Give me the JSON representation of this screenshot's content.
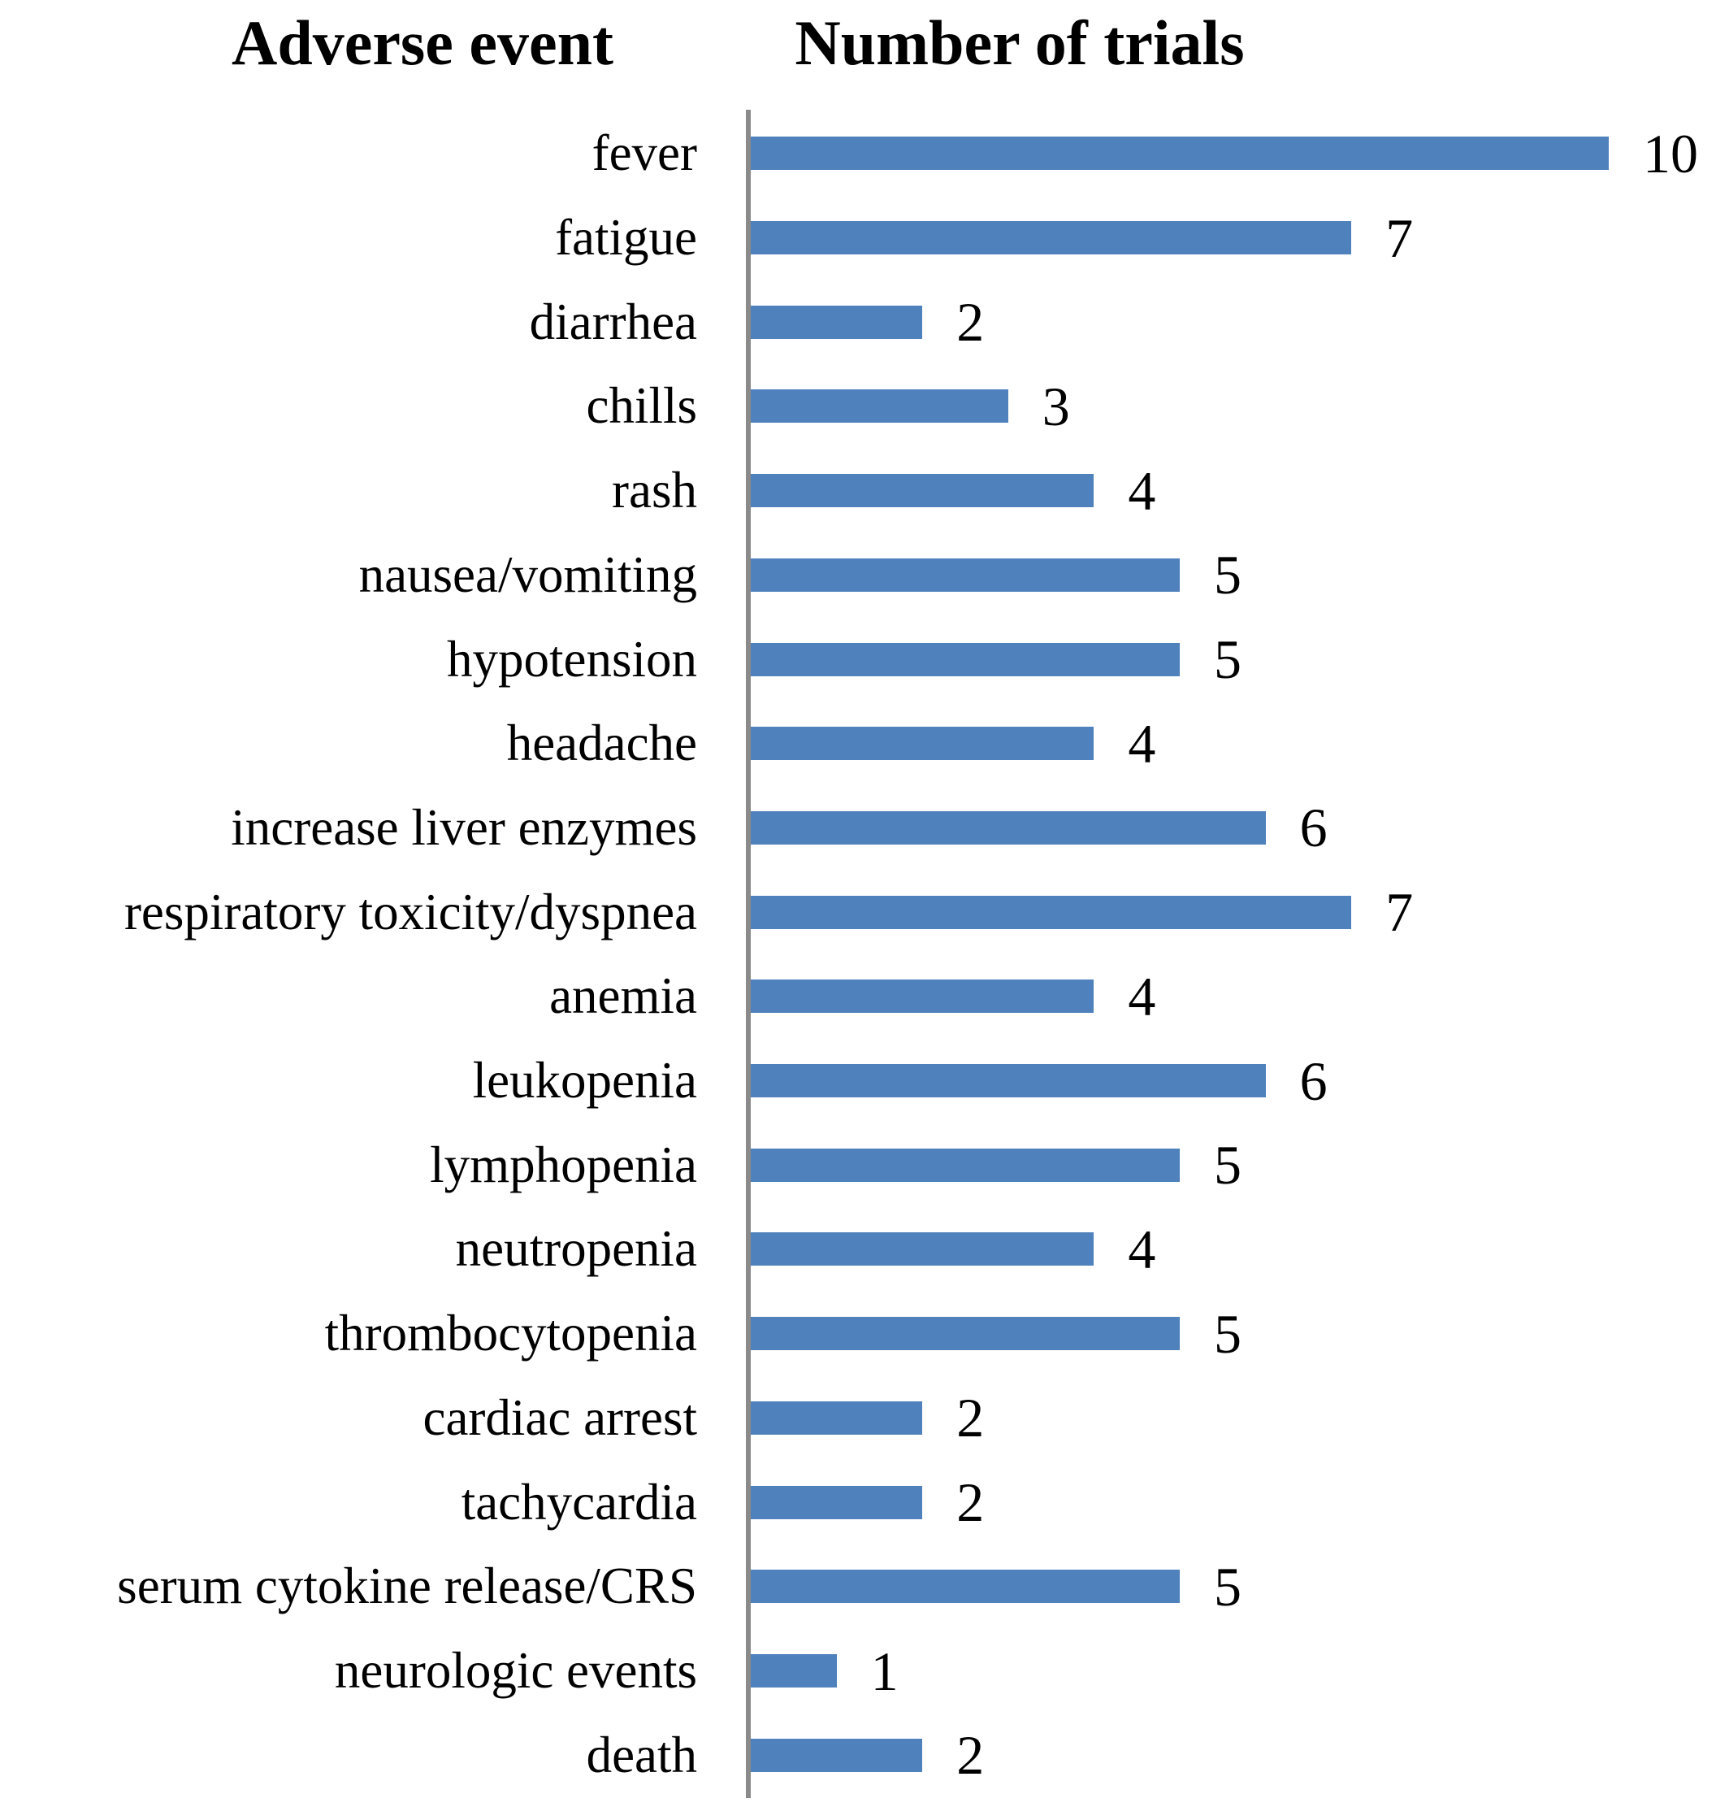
{
  "headers": {
    "left": "Adverse event",
    "right": "Number of trials"
  },
  "chart_data": {
    "type": "bar",
    "orientation": "horizontal",
    "categories": [
      "fever",
      "fatigue",
      "diarrhea",
      "chills",
      "rash",
      "nausea/vomiting",
      "hypotension",
      "headache",
      "increase liver enzymes",
      "respiratory toxicity/dyspnea",
      "anemia",
      "leukopenia",
      "lymphopenia",
      "neutropenia",
      "thrombocytopenia",
      "cardiac arrest",
      "tachycardia",
      "serum cytokine release/CRS",
      "neurologic events",
      "death"
    ],
    "values": [
      10,
      7,
      2,
      3,
      4,
      5,
      5,
      4,
      6,
      7,
      4,
      6,
      5,
      4,
      5,
      2,
      2,
      5,
      1,
      2
    ],
    "xlabel": "Number of trials",
    "ylabel": "Adverse event",
    "xlim": [
      0,
      10
    ],
    "grid": false,
    "legend": "none",
    "data_labels": "end-of-bar",
    "bar_color": "#4f81bd",
    "axis_line_color": "#8a8a8a",
    "text_color": "#000000"
  }
}
